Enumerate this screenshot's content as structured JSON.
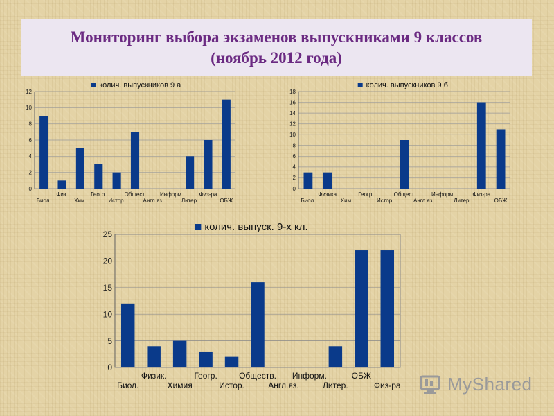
{
  "page": {
    "title_line1": "Мониторинг выбора экзаменов выпускниками 9 классов",
    "title_line2": "(ноябрь 2012 года)",
    "watermark_text": "MyShared",
    "colors": {
      "title": "#6b2a82",
      "title_bg": "#ece6f1",
      "bar": "#0a3a8a"
    }
  },
  "chart_data": [
    {
      "type": "bar",
      "categories": [
        "Биол.",
        "Физ.",
        "Хим.",
        "Геогр.",
        "Истор.",
        "Общест.",
        "Англ.яз.",
        "Информ.",
        "Литер.",
        "Физ-ра",
        "ОБЖ"
      ],
      "series": [
        {
          "name": "колич. выпускников 9 а",
          "values": [
            9,
            1,
            5,
            3,
            2,
            7,
            0,
            0,
            4,
            6,
            11
          ]
        }
      ],
      "ylim": [
        0,
        12
      ],
      "yticks": [
        0,
        2,
        4,
        6,
        8,
        10,
        12
      ],
      "grid": true,
      "legend": "top"
    },
    {
      "type": "bar",
      "categories": [
        "Биол.",
        "Физика",
        "Хим.",
        "Геогр.",
        "Истор.",
        "Общест.",
        "Англ.яз.",
        "Информ.",
        "Литер.",
        "Физ-ра",
        "ОБЖ"
      ],
      "series": [
        {
          "name": "колич. выпускников 9 б",
          "values": [
            3,
            3,
            0,
            0,
            0,
            9,
            0,
            0,
            0,
            16,
            11
          ]
        }
      ],
      "ylim": [
        0,
        18
      ],
      "yticks": [
        0,
        2,
        4,
        6,
        8,
        10,
        12,
        14,
        16,
        18
      ],
      "grid": true,
      "legend": "top"
    },
    {
      "type": "bar",
      "categories": [
        "Биол.",
        "Физик.",
        "Химия",
        "Геогр.",
        "Истор.",
        "Обществ.",
        "Англ.яз.",
        "Информ.",
        "Литер.",
        "ОБЖ",
        "Физ-ра"
      ],
      "series": [
        {
          "name": "колич. выпуск. 9-х кл.",
          "values": [
            12,
            4,
            5,
            3,
            2,
            16,
            0,
            0,
            4,
            22,
            22
          ]
        }
      ],
      "ylim": [
        0,
        25
      ],
      "yticks": [
        0,
        5,
        10,
        15,
        20,
        25
      ],
      "grid": true,
      "legend": "top"
    }
  ]
}
